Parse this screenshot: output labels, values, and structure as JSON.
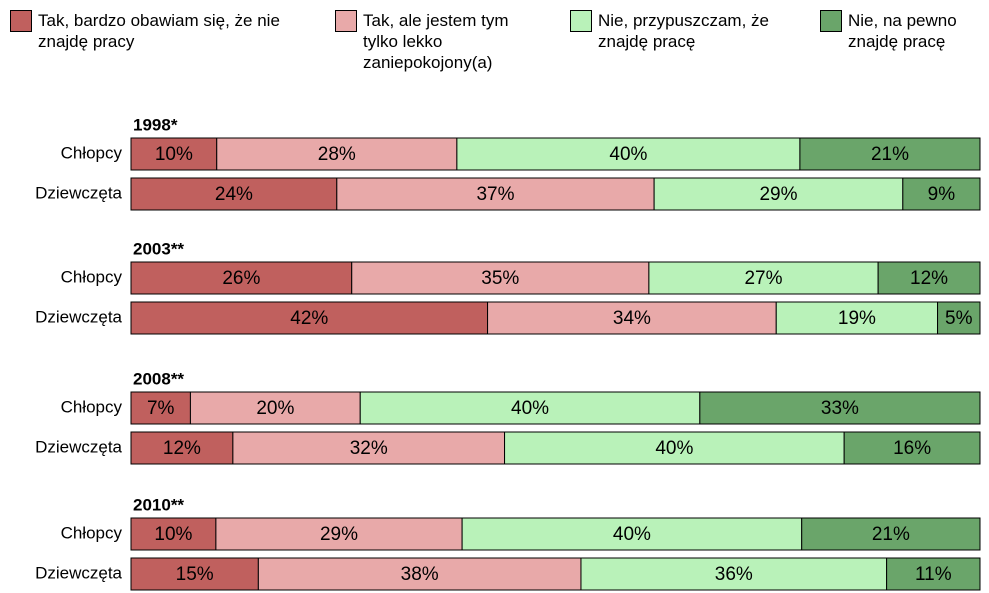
{
  "chart_data": {
    "type": "bar",
    "orientation": "horizontal",
    "stacked": true,
    "legend": "top",
    "groups": [
      "1998*",
      "2003**",
      "2008**",
      "2010**"
    ],
    "categories": [
      "Chłopcy",
      "Dziewczęta",
      "Chłopcy",
      "Dziewczęta",
      "Chłopcy",
      "Dziewczęta",
      "Chłopcy",
      "Dziewczęta"
    ],
    "series": [
      {
        "name": "Tak, bardzo obawiam się, że nie znajdę pracy",
        "color": "#c0605e",
        "values": [
          10,
          24,
          26,
          42,
          7,
          12,
          10,
          15
        ],
        "value_labels": [
          "10%",
          "24%",
          "26%",
          "42%",
          "7%",
          "12%",
          "10%",
          "15%"
        ]
      },
      {
        "name": "Tak, ale jestem tym tylko lekko zaniepokojony(a)",
        "color": "#e8a9a9",
        "values": [
          28,
          37,
          35,
          34,
          20,
          32,
          29,
          38
        ],
        "value_labels": [
          "28%",
          "37%",
          "35%",
          "34%",
          "20%",
          "32%",
          "29%",
          "38%"
        ]
      },
      {
        "name": "Nie, przypuszczam, że znajdę pracę",
        "color": "#b9f2b9",
        "values": [
          40,
          29,
          27,
          19,
          40,
          40,
          40,
          36
        ],
        "value_labels": [
          "40%",
          "29%",
          "27%",
          "19%",
          "40%",
          "40%",
          "40%",
          "36%"
        ]
      },
      {
        "name": "Nie, na pewno znajdę pracę",
        "color": "#6aa56a",
        "values": [
          21,
          9,
          12,
          5,
          33,
          16,
          21,
          11
        ],
        "value_labels": [
          "21%",
          "9%",
          "12%",
          "5%",
          "33%",
          "16%",
          "21%",
          "11%"
        ]
      }
    ]
  }
}
